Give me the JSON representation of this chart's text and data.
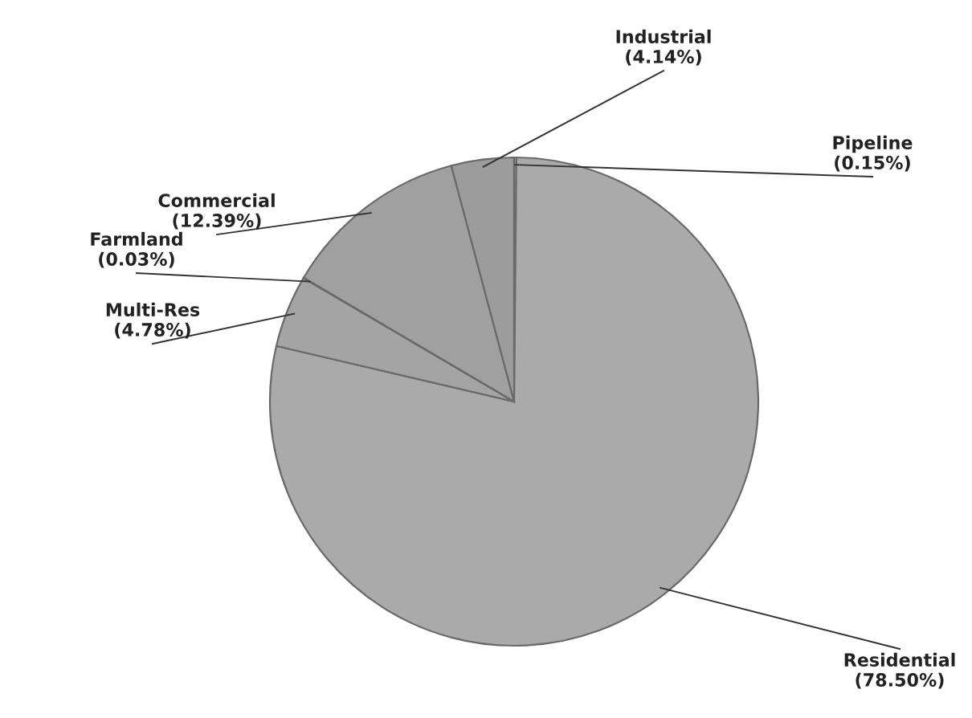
{
  "chart_data": {
    "type": "pie",
    "categories": [
      "Pipeline",
      "Residential",
      "Multi-Res",
      "Farmland",
      "Commercial",
      "Industrial"
    ],
    "values": [
      0.15,
      78.5,
      4.78,
      0.03,
      12.39,
      4.14
    ],
    "value_labels": [
      "(0.15%)",
      "(78.50%)",
      "(4.78%)",
      "(0.03%)",
      "(12.39%)",
      "(4.14%)"
    ],
    "colors": [
      "#b0b0b0",
      "#aaaaaa",
      "#a4a4a4",
      "#a8a8a8",
      "#a0a0a0",
      "#9c9c9c"
    ],
    "legend": false
  }
}
